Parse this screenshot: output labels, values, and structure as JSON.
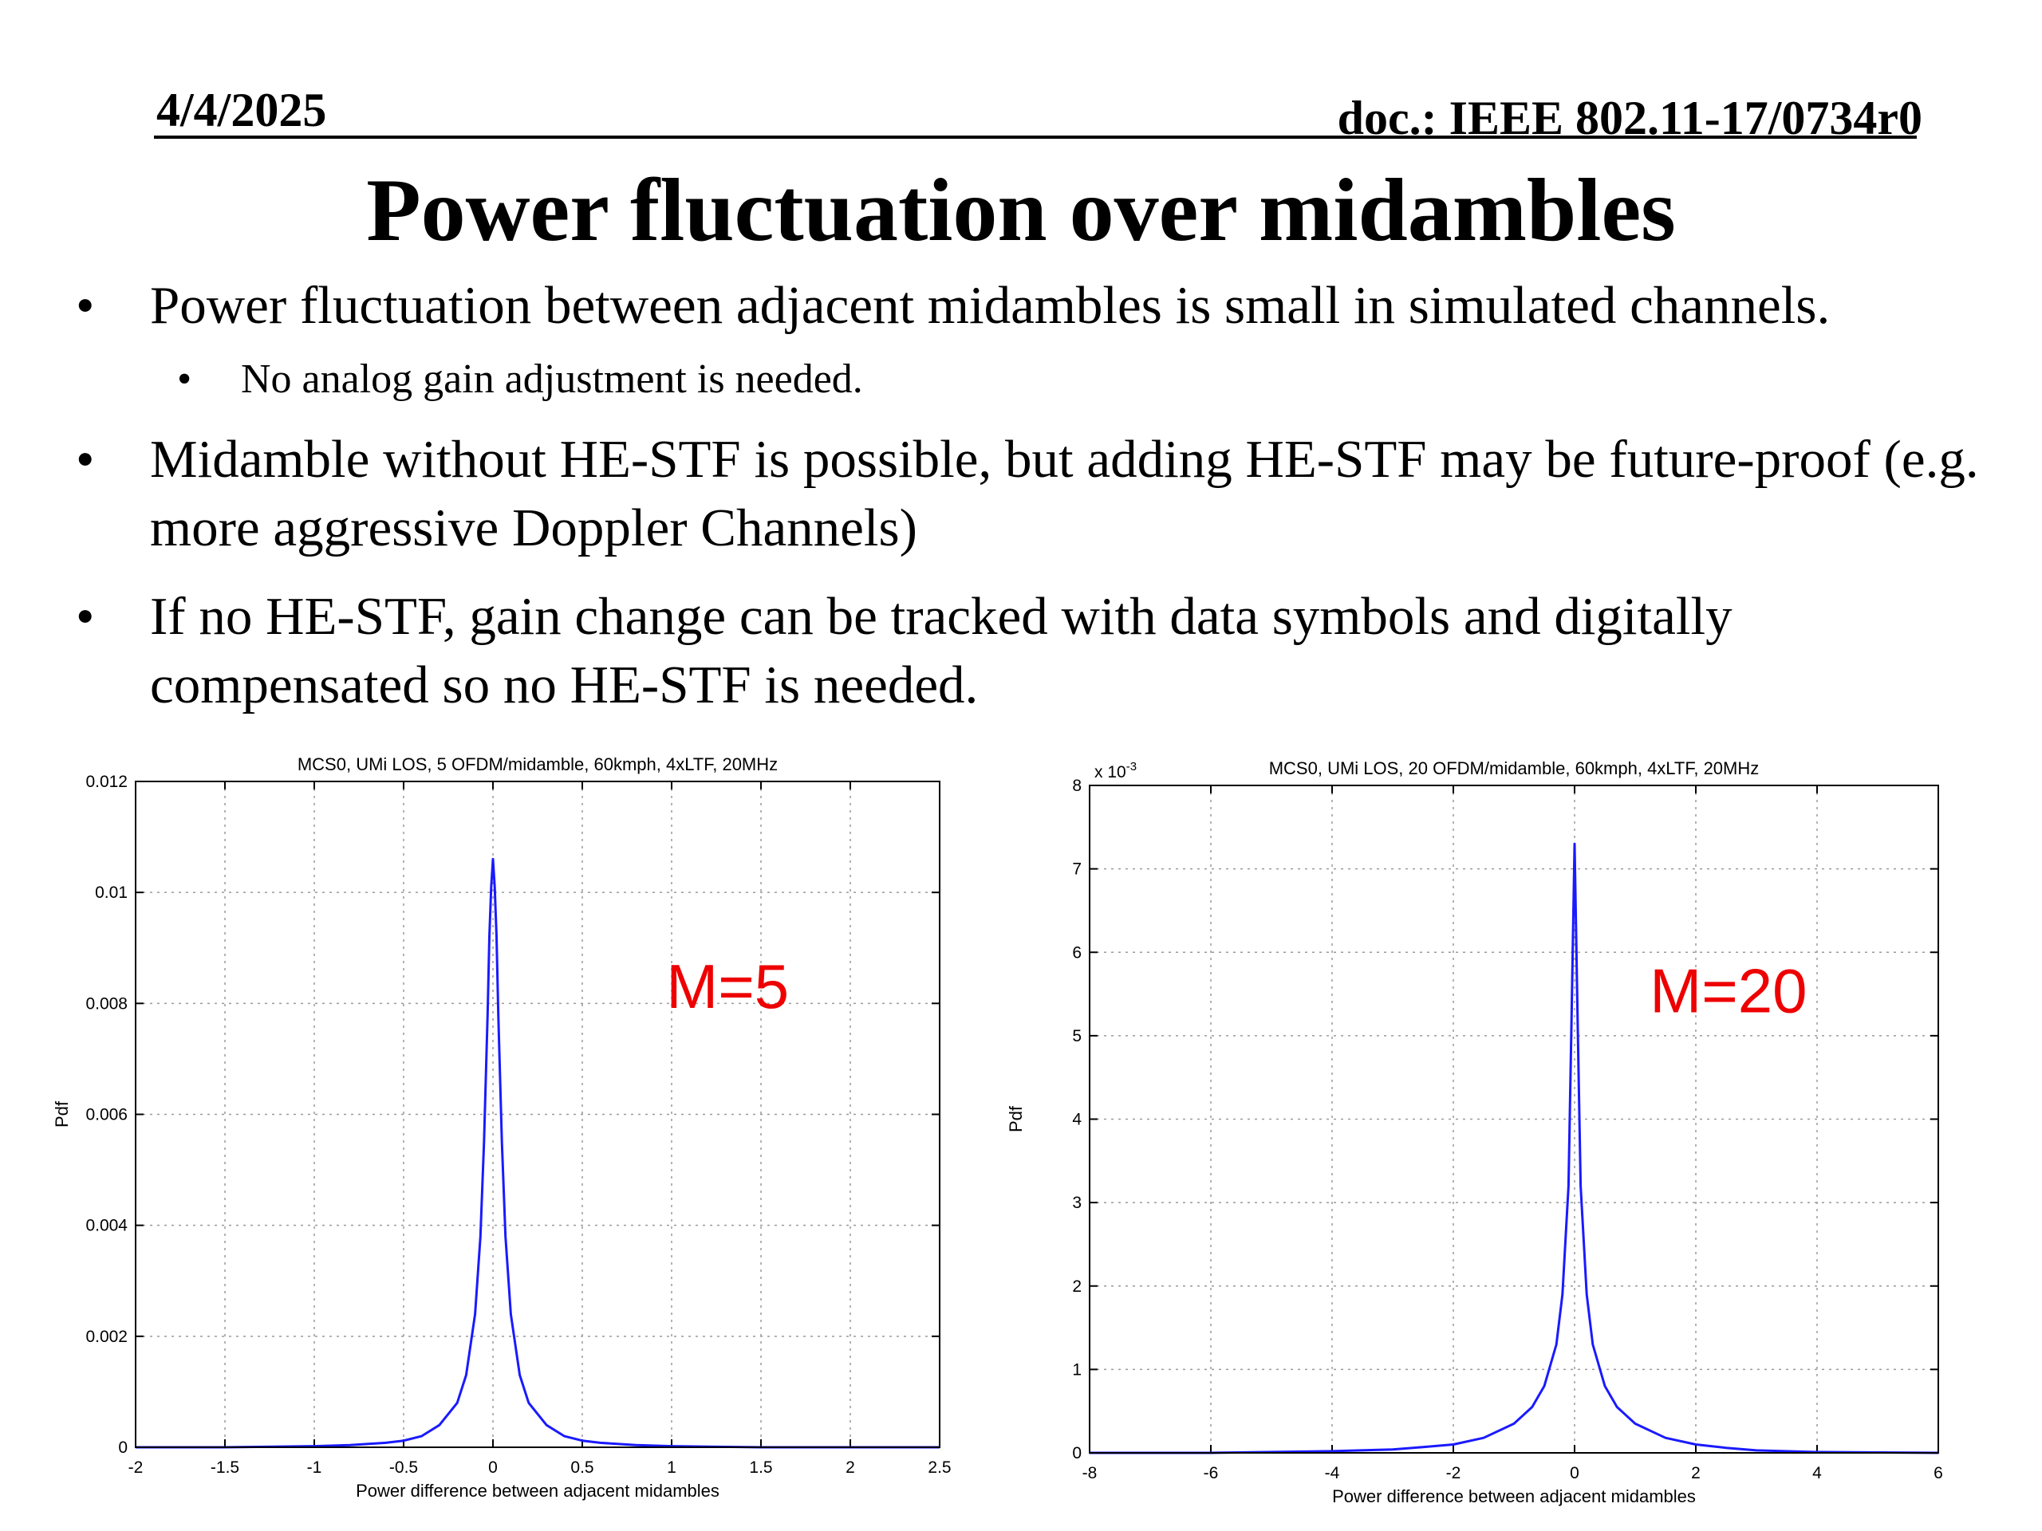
{
  "header": {
    "date": "4/4/2025",
    "doc": "doc.: IEEE 802.11-17/0734r0"
  },
  "title": "Power fluctuation over midambles",
  "bullets": [
    {
      "text": "Power fluctuation between adjacent midambles is small in simulated channels."
    },
    {
      "text": "No analog gain adjustment is needed."
    },
    {
      "text": "Midamble without HE-STF is possible, but adding HE-STF may be future-proof (e.g. more aggressive Doppler Channels)"
    },
    {
      "text": "If no HE-STF, gain change can be tracked with data symbols and digitally compensated so no HE-STF is needed."
    }
  ],
  "bullet_glyph": "•",
  "chart_data": [
    {
      "type": "line",
      "title": "MCS0, UMi LOS, 5 OFDM/midamble, 60kmph, 4xLTF, 20MHz",
      "xlabel": "Power difference between adjacent midambles",
      "ylabel": "Pdf",
      "xlim": [
        -2,
        2.5
      ],
      "ylim": [
        0,
        0.012
      ],
      "xticks": [
        "-2",
        "-1.5",
        "-1",
        "-0.5",
        "0",
        "0.5",
        "1",
        "1.5",
        "2",
        "2.5"
      ],
      "yticks": [
        "0",
        "0.002",
        "0.004",
        "0.006",
        "0.008",
        "0.01",
        "0.012"
      ],
      "annotation": "M=5",
      "grid": true,
      "series_color": "#1a1aff",
      "annotation_color": "#ee0000",
      "series": [
        {
          "x": [
            -2,
            -1.5,
            -1,
            -0.8,
            -0.6,
            -0.5,
            -0.4,
            -0.3,
            -0.2,
            -0.15,
            -0.1,
            -0.07,
            -0.05,
            -0.03,
            -0.02,
            -0.01,
            0,
            0.01,
            0.02,
            0.03,
            0.05,
            0.07,
            0.1,
            0.15,
            0.2,
            0.3,
            0.4,
            0.5,
            0.6,
            0.8,
            1,
            1.5,
            2,
            2.5
          ],
          "y": [
            0,
            0,
            2e-05,
            4e-05,
            8e-05,
            0.00012,
            0.0002,
            0.0004,
            0.0008,
            0.0013,
            0.0024,
            0.0038,
            0.0055,
            0.0078,
            0.0092,
            0.0101,
            0.0106,
            0.0101,
            0.0092,
            0.0078,
            0.0055,
            0.0038,
            0.0024,
            0.0013,
            0.0008,
            0.0004,
            0.0002,
            0.00012,
            8e-05,
            4e-05,
            2e-05,
            0,
            0,
            0
          ]
        }
      ]
    },
    {
      "type": "line",
      "title": "MCS0, UMi LOS, 20 OFDM/midamble, 60kmph, 4xLTF, 20MHz",
      "xlabel": "Power difference between adjacent midambles",
      "ylabel": "Pdf",
      "xlim": [
        -8,
        6
      ],
      "ylim": [
        0,
        8
      ],
      "xticks": [
        "-8",
        "-6",
        "-4",
        "-2",
        "0",
        "2",
        "4",
        "6"
      ],
      "yticks": [
        "0",
        "1",
        "2",
        "3",
        "4",
        "5",
        "6",
        "7",
        "8"
      ],
      "multiplier": "x 10",
      "multiplier_exp": "-3",
      "annotation": "M=20",
      "grid": true,
      "series_color": "#1a1aff",
      "annotation_color": "#ee0000",
      "series": [
        {
          "x": [
            -8,
            -6,
            -4,
            -3,
            -2.5,
            -2,
            -1.5,
            -1,
            -0.7,
            -0.5,
            -0.3,
            -0.2,
            -0.1,
            -0.05,
            0,
            0.05,
            0.1,
            0.2,
            0.3,
            0.5,
            0.7,
            1,
            1.5,
            2,
            2.5,
            3,
            4,
            6
          ],
          "y": [
            0,
            0,
            0.02,
            0.04,
            0.07,
            0.1,
            0.18,
            0.35,
            0.55,
            0.8,
            1.3,
            1.9,
            3.2,
            5.2,
            7.3,
            5.2,
            3.2,
            1.9,
            1.3,
            0.8,
            0.55,
            0.35,
            0.18,
            0.1,
            0.06,
            0.03,
            0.01,
            0
          ]
        }
      ]
    }
  ]
}
